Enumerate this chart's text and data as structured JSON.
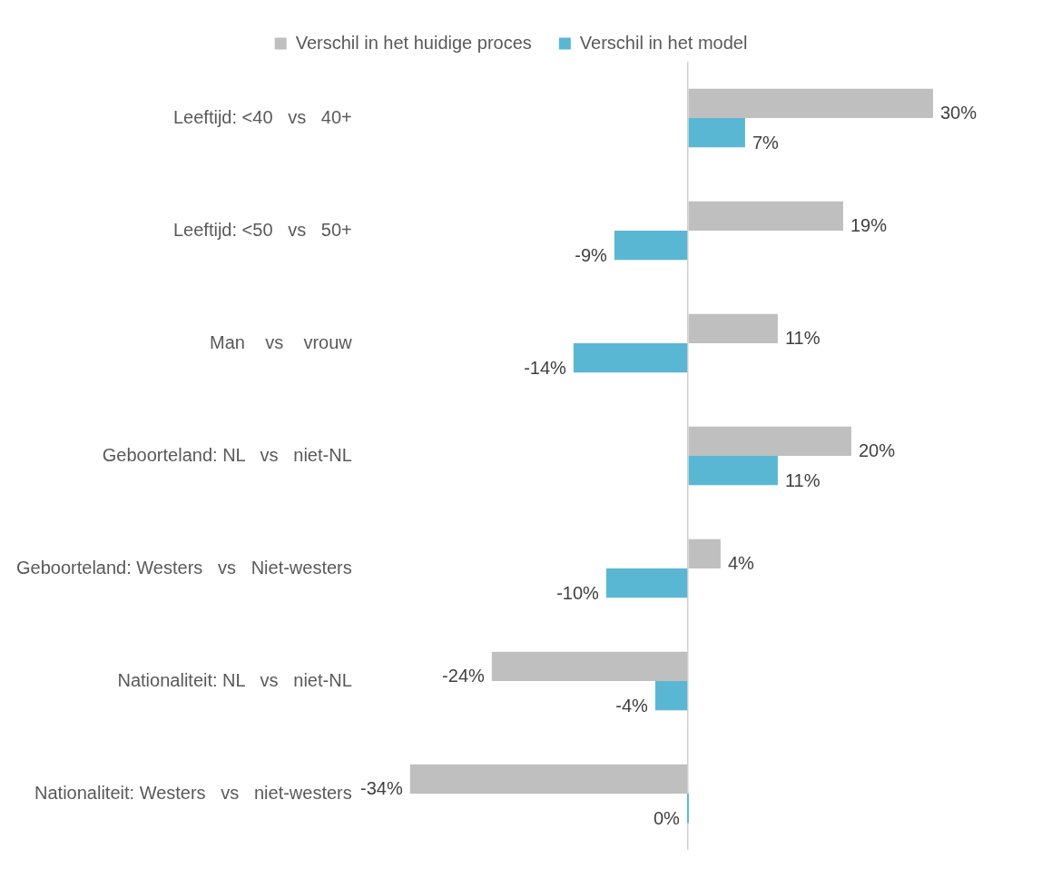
{
  "chart_data": {
    "type": "bar",
    "orientation": "horizontal",
    "categories": [
      "Leeftijd: <40   vs   40+",
      "Leeftijd: <50   vs   50+",
      "Man    vs    vrouw",
      "Geboorteland: NL   vs   niet-NL",
      "Geboorteland: Westers   vs   Niet-westers",
      "Nationaliteit: NL   vs   niet-NL",
      "Nationaliteit: Westers   vs   niet-westers"
    ],
    "series": [
      {
        "name": "Verschil in het huidige proces",
        "color": "#bfbfbf",
        "values": [
          30,
          19,
          11,
          20,
          4,
          -24,
          -34
        ],
        "value_labels": [
          "30%",
          "19%",
          "11%",
          "20%",
          "4%",
          "-24%",
          "-34%"
        ]
      },
      {
        "name": "Verschil in het model",
        "color": "#5ab7d4",
        "values": [
          7,
          -9,
          -14,
          11,
          -10,
          -4,
          0
        ],
        "value_labels": [
          "7%",
          "-9%",
          "-14%",
          "11%",
          "-10%",
          "-4%",
          "0%"
        ]
      }
    ],
    "legend": "top",
    "grid": false
  }
}
